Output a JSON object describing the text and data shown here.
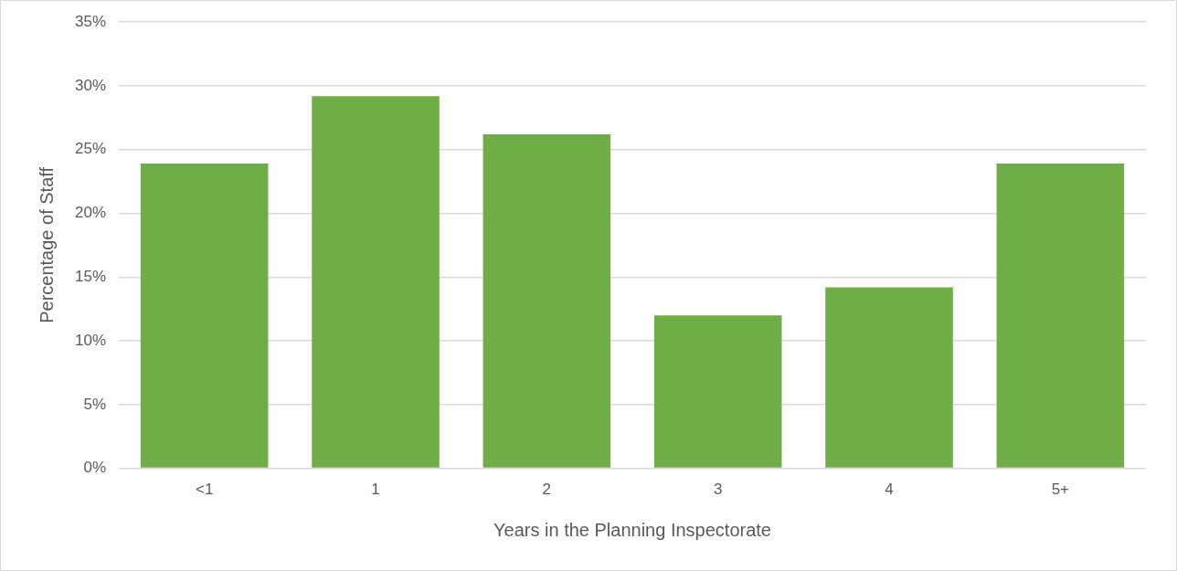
{
  "chart_data": {
    "type": "bar",
    "xlabel": "Years in the Planning Inspectorate",
    "ylabel": "Percentage of Staff",
    "categories": [
      "<1",
      "1",
      "2",
      "3",
      "4",
      "5+"
    ],
    "values": [
      23.9,
      29.2,
      26.2,
      12.0,
      14.2,
      23.9
    ],
    "color": "#70ad47",
    "ylim": [
      0,
      35
    ],
    "yticks": [
      {
        "value": 0,
        "label": "0%"
      },
      {
        "value": 5,
        "label": "5%"
      },
      {
        "value": 10,
        "label": "10%"
      },
      {
        "value": 15,
        "label": "15%"
      },
      {
        "value": 20,
        "label": "20%"
      },
      {
        "value": 25,
        "label": "25%"
      },
      {
        "value": 30,
        "label": "30%"
      },
      {
        "value": 35,
        "label": "35%"
      }
    ],
    "grid": "y",
    "legend": false
  }
}
